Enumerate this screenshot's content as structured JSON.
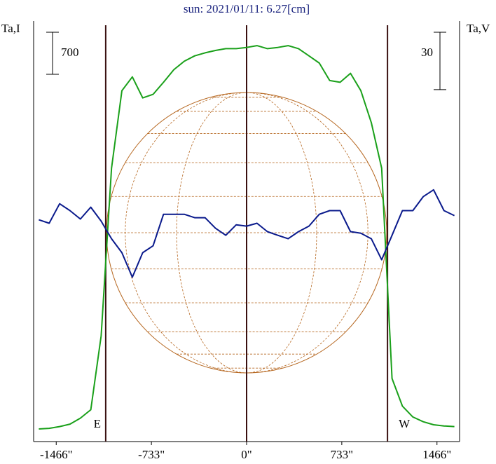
{
  "chart_data": {
    "type": "line",
    "title": "sun: 2021/01/11: 6.27[cm]",
    "y_label": "Ta,I",
    "y2_label": "Ta,V",
    "x": [
      -1600,
      -1520,
      -1440,
      -1360,
      -1280,
      -1200,
      -1120,
      -1040,
      -960,
      -880,
      -800,
      -720,
      -640,
      -560,
      -480,
      -400,
      -320,
      -240,
      -160,
      -80,
      0,
      80,
      160,
      240,
      320,
      400,
      480,
      560,
      640,
      720,
      800,
      880,
      960,
      1040,
      1120,
      1200,
      1280,
      1360,
      1440,
      1520,
      1600
    ],
    "series": [
      {
        "name": "I",
        "color": "#1aa01a",
        "values": [
          10,
          20,
          50,
          90,
          190,
          330,
          1560,
          4350,
          5640,
          5870,
          5520,
          5580,
          5780,
          5990,
          6130,
          6220,
          6270,
          6310,
          6340,
          6340,
          6360,
          6390,
          6340,
          6360,
          6390,
          6340,
          6220,
          6100,
          5810,
          5780,
          5930,
          5640,
          5110,
          4350,
          850,
          390,
          210,
          130,
          80,
          60,
          50
        ]
      },
      {
        "name": "V",
        "color": "#0a1a8c",
        "axis": "y2",
        "values": [
          0,
          -1.8,
          8.4,
          4.8,
          0.4,
          6.6,
          -0.7,
          -9.9,
          -17.2,
          -30,
          -17.2,
          -13.6,
          2.9,
          2.9,
          2.9,
          1.1,
          1.1,
          -4.4,
          -8.1,
          -2.6,
          -3.3,
          -1.8,
          -6.2,
          -8.1,
          -9.9,
          -6.2,
          -3.3,
          2.9,
          4.8,
          4.8,
          -6.2,
          -7,
          -9.9,
          -20.9,
          -8.1,
          4.8,
          4.8,
          12.1,
          15.7,
          4.8,
          2.2
        ]
      }
    ],
    "xlim": [
      -1640,
      1640
    ],
    "xticks": [
      {
        "value": -1466,
        "label": "-1466\""
      },
      {
        "value": -733,
        "label": "-733\""
      },
      {
        "value": 0,
        "label": "0\""
      },
      {
        "value": 733,
        "label": "733\""
      },
      {
        "value": 1466,
        "label": "1466\""
      }
    ],
    "ylim": [
      -200,
      6800
    ],
    "y2lim": [
      -116,
      104
    ],
    "scale_bar_y": 700,
    "scale_bar_y2": 30,
    "vlines": [
      -1085,
      0,
      1085
    ],
    "annotations": [
      {
        "text": "E",
        "x": -1085
      },
      {
        "text": "W",
        "x": 1085
      }
    ]
  }
}
